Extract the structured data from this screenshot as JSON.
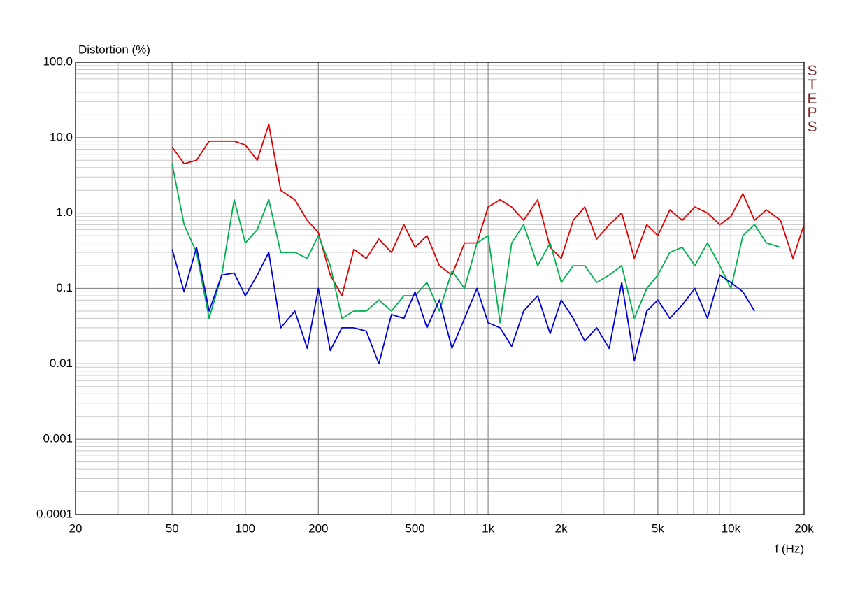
{
  "chart_data": {
    "type": "line",
    "y_label": "Distortion (%)",
    "x_label": "f (Hz)",
    "watermark": "STEPS",
    "log_x": true,
    "log_y": true,
    "grid": true,
    "minor_grid": true,
    "xlim": [
      20,
      20000
    ],
    "ylim": [
      0.0001,
      100
    ],
    "xticks": [
      20,
      50,
      100,
      200,
      500,
      {
        "value": 1000,
        "label": "1k"
      },
      {
        "value": 2000,
        "label": "2k"
      },
      {
        "value": 5000,
        "label": "5k"
      },
      {
        "value": 10000,
        "label": "10k"
      },
      {
        "value": 20000,
        "label": "20k"
      }
    ],
    "yticks": [
      0.0001,
      0.001,
      0.01,
      0.1,
      {
        "value": 1,
        "label": "1.0"
      },
      {
        "value": 10,
        "label": "10.0"
      },
      {
        "value": 100,
        "label": "100.0"
      }
    ],
    "x": [
      50,
      56,
      63,
      71,
      80,
      90,
      100,
      112,
      125,
      140,
      160,
      180,
      200,
      224,
      250,
      280,
      315,
      355,
      400,
      450,
      500,
      560,
      630,
      710,
      800,
      900,
      1000,
      1120,
      1250,
      1400,
      1600,
      1800,
      2000,
      2240,
      2500,
      2800,
      3150,
      3550,
      4000,
      4500,
      5000,
      5600,
      6300,
      7100,
      8000,
      9000,
      10000,
      11200,
      12500,
      14000,
      16000,
      18000,
      20000
    ],
    "series": [
      {
        "color": "#e00000",
        "values": [
          7.5,
          4.5,
          5,
          9,
          9,
          9,
          8,
          5,
          15,
          2,
          1.5,
          0.8,
          0.55,
          0.15,
          0.08,
          0.33,
          0.25,
          0.45,
          0.3,
          0.7,
          0.35,
          0.5,
          0.2,
          0.15,
          0.4,
          0.4,
          1.2,
          1.5,
          1.2,
          0.8,
          1.5,
          0.35,
          0.25,
          0.8,
          1.2,
          0.45,
          0.7,
          1,
          0.25,
          0.7,
          0.5,
          1.1,
          0.8,
          1.2,
          1,
          0.7,
          0.9,
          1.8,
          0.8,
          1.1,
          0.8,
          0.25,
          0.7
        ]
      },
      {
        "color": "#00b050",
        "values": [
          4.5,
          0.7,
          0.3,
          0.04,
          0.15,
          1.5,
          0.4,
          0.6,
          1.5,
          0.3,
          0.3,
          0.25,
          0.5,
          0.2,
          0.04,
          0.05,
          0.05,
          0.07,
          0.05,
          0.08,
          0.08,
          0.12,
          0.05,
          0.17,
          0.1,
          0.4,
          0.5,
          0.035,
          0.4,
          0.7,
          0.2,
          0.4,
          0.12,
          0.2,
          0.2,
          0.12,
          0.15,
          0.2,
          0.04,
          0.1,
          0.15,
          0.3,
          0.35,
          0.2,
          0.4,
          0.2,
          0.1,
          0.5,
          0.7,
          0.4,
          0.35,
          null,
          null
        ]
      },
      {
        "color": "#0000dd",
        "values": [
          0.33,
          0.09,
          0.35,
          0.05,
          0.15,
          0.16,
          0.08,
          0.15,
          0.3,
          0.03,
          0.05,
          0.016,
          0.1,
          0.015,
          0.03,
          0.03,
          0.027,
          0.01,
          0.045,
          0.04,
          0.09,
          0.03,
          0.07,
          0.016,
          0.04,
          0.1,
          0.035,
          0.03,
          0.017,
          0.05,
          0.08,
          0.025,
          0.07,
          0.04,
          0.02,
          0.03,
          0.016,
          0.12,
          0.011,
          0.05,
          0.07,
          0.04,
          0.06,
          0.1,
          0.04,
          0.15,
          0.12,
          0.09,
          0.05,
          null,
          null,
          null,
          null
        ]
      }
    ]
  }
}
